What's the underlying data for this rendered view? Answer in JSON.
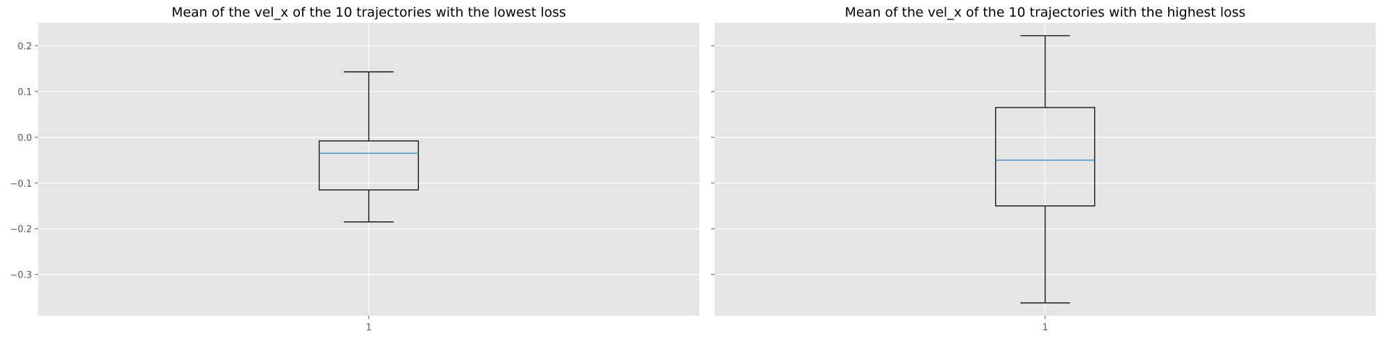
{
  "chart_data": [
    {
      "type": "box",
      "title": "Mean of the vel_x of the 10 trajectories with the lowest loss",
      "categories": [
        "1"
      ],
      "boxes": [
        {
          "whisker_low": -0.185,
          "q1": -0.115,
          "median": -0.035,
          "q3": -0.008,
          "whisker_high": 0.143
        }
      ],
      "ylim": [
        -0.39,
        0.25
      ],
      "yticks": [
        0.2,
        0.1,
        0.0,
        -0.1,
        -0.2,
        -0.3
      ],
      "ytick_labels": [
        "0.2",
        "0.1",
        "0.0",
        "−0.1",
        "−0.2",
        "−0.3"
      ],
      "grid": true,
      "shared_y": true
    },
    {
      "type": "box",
      "title": "Mean of the vel_x of the 10 trajectories with the highest loss",
      "categories": [
        "1"
      ],
      "boxes": [
        {
          "whisker_low": -0.362,
          "q1": -0.15,
          "median": -0.05,
          "q3": 0.065,
          "whisker_high": 0.222
        }
      ],
      "ylim": [
        -0.39,
        0.25
      ],
      "yticks": [
        0.2,
        0.1,
        0.0,
        -0.1,
        -0.2,
        -0.3
      ],
      "ytick_labels": [
        "",
        "",
        "",
        "",
        "",
        ""
      ],
      "grid": true,
      "shared_y": true
    }
  ],
  "style": {
    "axes_bg": "#e5e5e5",
    "grid_color": "#ffffff",
    "box_color": "#000000",
    "median_color": "#348abd",
    "tick_color": "#555555",
    "title_color": "#000000"
  }
}
